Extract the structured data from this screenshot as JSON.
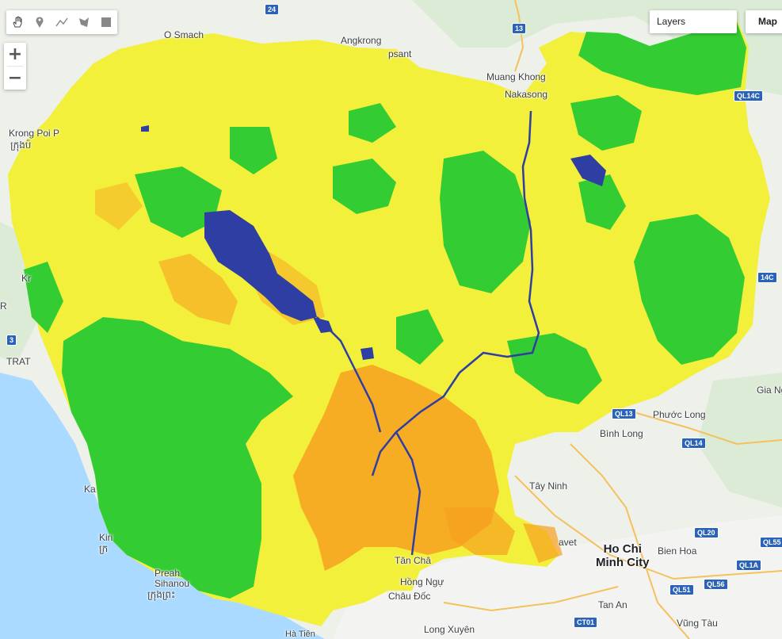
{
  "toolbar": {
    "tools": [
      {
        "name": "pan-hand-icon"
      },
      {
        "name": "marker-icon"
      },
      {
        "name": "polyline-icon"
      },
      {
        "name": "polygon-icon"
      },
      {
        "name": "rectangle-icon"
      }
    ]
  },
  "zoom": {
    "in_label": "+",
    "out_label": "−"
  },
  "layers": {
    "label": "Layers"
  },
  "map_type": {
    "label": "Map"
  },
  "legend_colors": {
    "forest": "#33cc33",
    "cropland": "#f2f03a",
    "urban_built": "#f7a020",
    "water": "#2e3ea3",
    "sea": "#aadaff",
    "land_outside": "#eeeeee"
  },
  "places": [
    {
      "id": "o-smach",
      "text": "O Smach"
    },
    {
      "id": "angkrong",
      "text": "Angkrong"
    },
    {
      "id": "phnom-sant",
      "text": "psant"
    },
    {
      "id": "muang-khong",
      "text": "Muang Khong"
    },
    {
      "id": "nakasong",
      "text": "Nakasong"
    },
    {
      "id": "krong-poi",
      "text": "Krong Poi P"
    },
    {
      "id": "krong-poi-kh",
      "text": "ក្រុងប៉"
    },
    {
      "id": "trat",
      "text": "TRAT"
    },
    {
      "id": "kr-left",
      "text": "Kr"
    },
    {
      "id": "kr-left2",
      "text": "R"
    },
    {
      "id": "ka",
      "text": "Ka"
    },
    {
      "id": "kiri",
      "text": "Kiri"
    },
    {
      "id": "kiri2",
      "text": "ក្រ"
    },
    {
      "id": "preah-sihanouk",
      "text": "Preah\nSihanou"
    },
    {
      "id": "preah-kh",
      "text": "ក្រុងព្រះ"
    },
    {
      "id": "tan-chau",
      "text": "Tân Châ"
    },
    {
      "id": "hong-ngu",
      "text": "Hồng Ngự"
    },
    {
      "id": "chau-doc",
      "text": "Châu Đốc"
    },
    {
      "id": "long-xuyen",
      "text": "Long Xuyên"
    },
    {
      "id": "ha-tien",
      "text": "Hà Tiên"
    },
    {
      "id": "tay-ninh",
      "text": "Tây Ninh"
    },
    {
      "id": "phuoc-long",
      "text": "Phước Long"
    },
    {
      "id": "binh-long",
      "text": "Bình Long"
    },
    {
      "id": "gia-ng",
      "text": "Gia Ng"
    },
    {
      "id": "bavet",
      "text": "avet"
    },
    {
      "id": "bien-hoa",
      "text": "Bien Hoa"
    },
    {
      "id": "tan-an",
      "text": "Tan An"
    },
    {
      "id": "vung-tau",
      "text": "Vũng Tàu"
    }
  ],
  "major_city": {
    "text": "Ho Chi\nMinh City"
  },
  "shields": [
    {
      "id": "s24",
      "text": "24"
    },
    {
      "id": "s13",
      "text": "13"
    },
    {
      "id": "sql14c",
      "text": "QL14C"
    },
    {
      "id": "sql14c2",
      "text": "14C"
    },
    {
      "id": "s3",
      "text": "3"
    },
    {
      "id": "sql13",
      "text": "QL13"
    },
    {
      "id": "sql14",
      "text": "QL14"
    },
    {
      "id": "sql20",
      "text": "QL20"
    },
    {
      "id": "sql55",
      "text": "QL55"
    },
    {
      "id": "sql1a",
      "text": "QL1A"
    },
    {
      "id": "sql51",
      "text": "QL51"
    },
    {
      "id": "sql56",
      "text": "QL56"
    },
    {
      "id": "sct01",
      "text": "CT01"
    }
  ]
}
